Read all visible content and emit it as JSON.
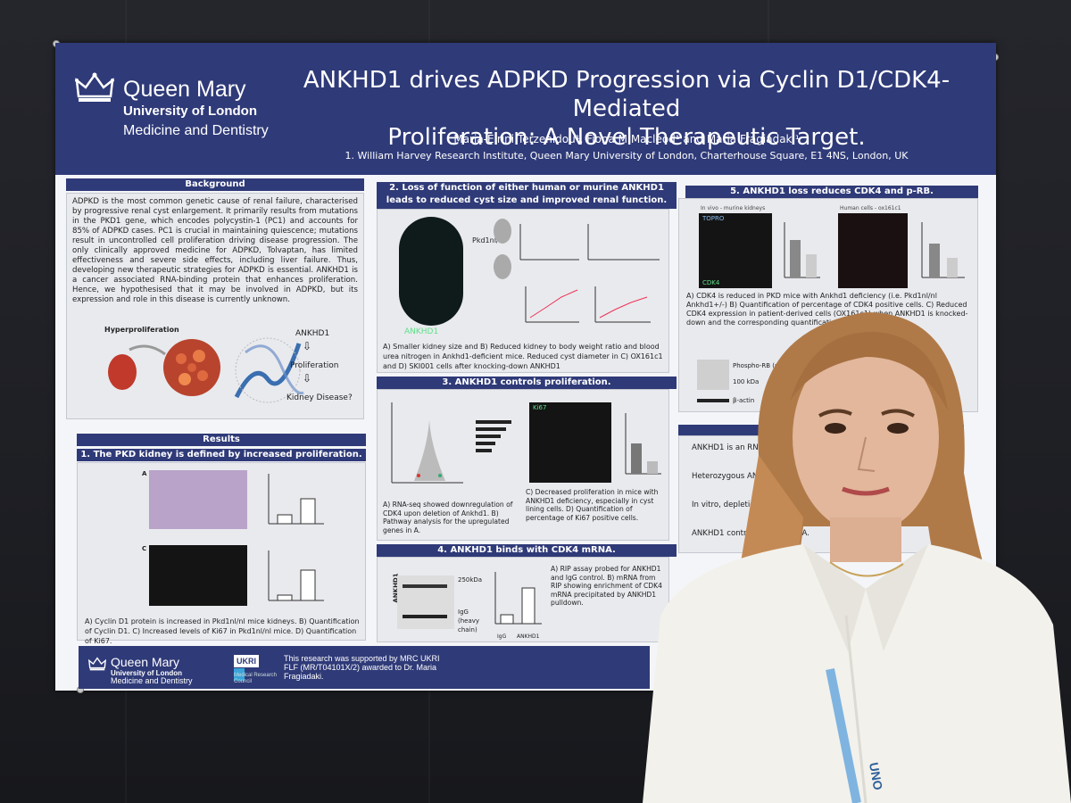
{
  "poster": {
    "institution": "Queen Mary",
    "institution_sub": "University of London",
    "department": "Medicine and Dentistry",
    "title_line1": "ANKHD1 drives ADPKD Progression via Cyclin D1/CDK4-Mediated",
    "title_line2": "Proliferation: A Novel Therapeutic Target.",
    "authors": "Maria-Eirini Terzenidou¹, Fiona M Macleod¹ and Maria Fragiadaki¹",
    "affiliation": "1.   William Harvey Research Institute, Queen Mary University of London, Charterhouse Square, E1 4NS, London, UK",
    "background": {
      "heading": "Background",
      "body": "ADPKD is the most common genetic cause of renal failure, characterised by progressive renal cyst enlargement. It primarily results from mutations in the PKD1 gene, which encodes polycystin-1 (PC1) and accounts for 85% of ADPKD cases. PC1 is crucial in maintaining quiescence; mutations result in uncontrolled cell proliferation driving disease progression. The only clinically approved medicine for ADPKD, Tolvaptan, has limited effectiveness and severe side effects, including liver failure. Thus, developing new therapeutic strategies for ADPKD is essential. ANKHD1 is a cancer associated RNA-binding protein that enhances proliferation. Hence, we hypothesised that it may be involved in ADPKD, but its expression and role in this disease is currently unknown.",
      "hyper_label": "Hyperproliferation",
      "flow": [
        "ANKHD1",
        "Proliferation",
        "Kidney Disease?"
      ]
    },
    "results": {
      "heading": "Results",
      "sec1": "1. The PKD kidney is defined by increased proliferation.",
      "sec1_caption": "A) Cyclin D1 protein is increased in Pkd1nl/nl mice kidneys. B) Quantification of Cyclin D1. C) Increased levels of Ki67 in Pkd1nl/nl mice. D) Quantification of Ki67.",
      "sec2": "2. Loss of function of either human or murine ANKHD1 leads to reduced cyst size and improved renal function.",
      "sec2_kidney_label": "ANKHD1",
      "sec2_pkd_label": "Pkd1nl/nl",
      "sec2_caption": "A) Smaller kidney size and B) Reduced kidney to body weight ratio and blood urea nitrogen in Ankhd1-deficient mice. Reduced cyst diameter in C) OX161c1 and D) SKI001 cells after knocking-down ANKHD1",
      "sec3": "3. ANKHD1 controls proliferation.",
      "sec3_caption_left": "A) RNA-seq showed downregulation of CDK4 upon deletion of Ankhd1. B) Pathway analysis for the upregulated genes in A.",
      "sec3_caption_right": "C) Decreased proliferation in mice with ANKHD1 deficiency, especially in cyst lining cells. D) Quantification of percentage of Ki67 positive cells.",
      "sec3_ki67": "Ki67",
      "sec4": "4. ANKHD1 binds with CDK4 mRNA.",
      "sec4_caption": "A) RIP assay probed for ANKHD1 and IgG control. B) mRNA from RIP showing enrichment of CDK4 mRNA precipitated by ANKHD1 pulldown.",
      "sec4_kda": "250kDa",
      "sec4_igg": "IgG (heavy chain)",
      "sec4_ylabel": "ANKHD1",
      "sec4_x": [
        "IgG",
        "ANKHD1"
      ],
      "sec5": "5. ANKHD1 loss reduces CDK4 and p-RB.",
      "sec5_invivo": "In vivo - murine kidneys",
      "sec5_human": "Human cells - ox161c1",
      "sec5_topro": "TOPRO",
      "sec5_cdk4": "CDK4",
      "sec5_caption": "A) CDK4 is reduced in PKD mice with Ankhd1 deficiency (i.e. Pkd1nl/nl Ankhd1+/-) B) Quantification of percentage of CDK4 positive cells. C) Reduced CDK4 expression in patient-derived cells (OX161c1) when ANKHD1 is knocked-down and the corresponding quantification shown in D.",
      "sec5_blot": [
        "Phospho-RB (ser807/811)",
        "100 kDa",
        "β-actin"
      ],
      "conclusions": [
        "ANKHD1 is an RNA-binding protein upregulated in ADPKD renal cells.",
        "Heterozygous ANKHD1 deletion results in smaller kidneys.",
        "In vitro, depletion of ANKHD1 reduces proliferation and renal cysts.",
        "ANKHD1 controls CDK4 mRNA."
      ]
    },
    "footer": {
      "institution": "Queen Mary",
      "institution_sub": "University of London",
      "department": "Medicine and Dentistry",
      "ukri": "UKRI",
      "mrc": "Medical Research Council",
      "support": "This research was supported by MRC UKRI FLF (MR/T04101X/2) awarded to Dr. Maria Fragiadaki."
    }
  },
  "badge_text": "UNO"
}
